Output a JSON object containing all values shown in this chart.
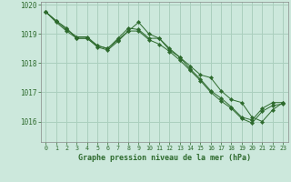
{
  "title": "Graphe pression niveau de la mer (hPa)",
  "background_color": "#cce8dc",
  "grid_color": "#aacfbe",
  "line_color": "#2d6a2d",
  "marker_color": "#2d6a2d",
  "xlim": [
    -0.5,
    23.5
  ],
  "ylim": [
    1015.3,
    1020.1
  ],
  "yticks": [
    1016,
    1017,
    1018,
    1019,
    1020
  ],
  "xticks": [
    0,
    1,
    2,
    3,
    4,
    5,
    6,
    7,
    8,
    9,
    10,
    11,
    12,
    13,
    14,
    15,
    16,
    17,
    18,
    19,
    20,
    21,
    22,
    23
  ],
  "series": [
    [
      1019.75,
      1019.45,
      1019.2,
      1018.85,
      1018.85,
      1018.6,
      1018.5,
      1018.85,
      1019.2,
      1019.15,
      1018.85,
      1018.85,
      1018.5,
      1018.2,
      1017.9,
      1017.6,
      1017.5,
      1017.05,
      1016.75,
      1016.65,
      1016.15,
      1016.0,
      1016.4,
      1016.65
    ],
    [
      1019.75,
      1019.45,
      1019.15,
      1018.9,
      1018.9,
      1018.6,
      1018.5,
      1018.8,
      1019.1,
      1019.4,
      1019.0,
      1018.85,
      1018.45,
      1018.2,
      1017.8,
      1017.45,
      1017.05,
      1016.8,
      1016.5,
      1016.15,
      1016.05,
      1016.45,
      1016.65,
      1016.65
    ],
    [
      1019.75,
      1019.4,
      1019.1,
      1018.85,
      1018.85,
      1018.55,
      1018.45,
      1018.75,
      1019.1,
      1019.1,
      1018.8,
      1018.65,
      1018.4,
      1018.1,
      1017.75,
      1017.4,
      1017.0,
      1016.7,
      1016.45,
      1016.1,
      1015.95,
      1016.35,
      1016.55,
      1016.6
    ]
  ]
}
